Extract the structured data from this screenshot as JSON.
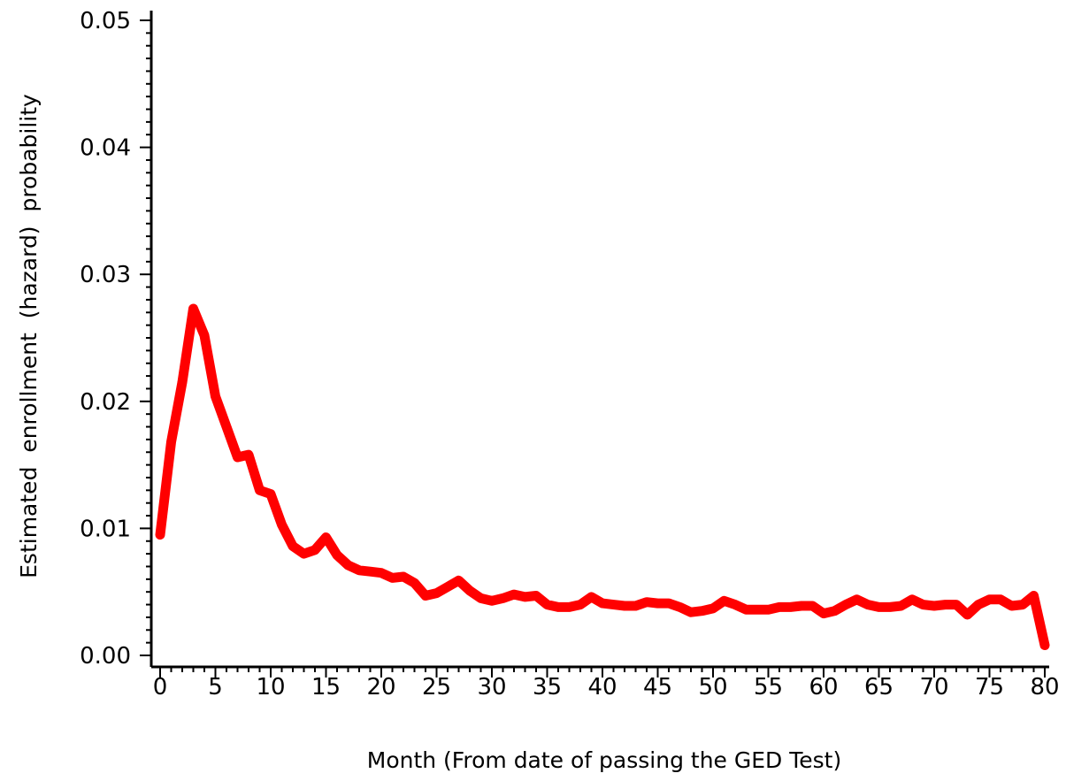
{
  "chart_data": {
    "type": "line",
    "title": "",
    "xlabel": "Month (From date of passing the GED Test)",
    "ylabel": "Estimated  enrollment  (hazard)  probability",
    "xlim": [
      0,
      80
    ],
    "ylim": [
      0,
      0.05
    ],
    "xticks": [
      0,
      5,
      10,
      15,
      20,
      25,
      30,
      35,
      40,
      45,
      50,
      55,
      60,
      65,
      70,
      75,
      80
    ],
    "xtick_labels": [
      "0",
      "5",
      "10",
      "15",
      "20",
      "25",
      "30",
      "35",
      "40",
      "45",
      "50",
      "55",
      "60",
      "65",
      "70",
      "75",
      "80"
    ],
    "yticks": [
      0,
      0.01,
      0.02,
      0.03,
      0.04,
      0.05
    ],
    "ytick_labels": [
      "0.00",
      "0.01",
      "0.02",
      "0.03",
      "0.04",
      "0.05"
    ],
    "grid": false,
    "legend": "none",
    "series": [
      {
        "color": "#ff0000",
        "x": [
          0,
          1,
          2,
          3,
          4,
          5,
          6,
          7,
          8,
          9,
          10,
          11,
          12,
          13,
          14,
          15,
          16,
          17,
          18,
          19,
          20,
          21,
          22,
          23,
          24,
          25,
          26,
          27,
          28,
          29,
          30,
          31,
          32,
          33,
          34,
          35,
          36,
          37,
          38,
          39,
          40,
          41,
          42,
          43,
          44,
          45,
          46,
          47,
          48,
          49,
          50,
          51,
          52,
          53,
          54,
          55,
          56,
          57,
          58,
          59,
          60,
          61,
          62,
          63,
          64,
          65,
          66,
          67,
          68,
          69,
          70,
          71,
          72,
          73,
          74,
          75,
          76,
          77,
          78,
          79,
          80
        ],
        "y": [
          0.0095,
          0.0168,
          0.0215,
          0.0273,
          0.0252,
          0.0204,
          0.018,
          0.0156,
          0.0158,
          0.013,
          0.0127,
          0.0103,
          0.0086,
          0.008,
          0.0083,
          0.0093,
          0.0079,
          0.0071,
          0.0067,
          0.0066,
          0.0065,
          0.0061,
          0.0062,
          0.0057,
          0.0047,
          0.0049,
          0.0054,
          0.0059,
          0.0051,
          0.0045,
          0.0043,
          0.0045,
          0.0048,
          0.0046,
          0.0047,
          0.004,
          0.0038,
          0.0038,
          0.004,
          0.0046,
          0.0041,
          0.004,
          0.0039,
          0.0039,
          0.0042,
          0.0041,
          0.0041,
          0.0038,
          0.0034,
          0.0035,
          0.0037,
          0.0043,
          0.004,
          0.0036,
          0.0036,
          0.0036,
          0.0038,
          0.0038,
          0.0039,
          0.0039,
          0.0033,
          0.0035,
          0.004,
          0.0044,
          0.004,
          0.0038,
          0.0038,
          0.0039,
          0.0044,
          0.004,
          0.0039,
          0.004,
          0.004,
          0.0032,
          0.004,
          0.0044,
          0.0044,
          0.0039,
          0.004,
          0.0047,
          0.0008
        ]
      }
    ]
  },
  "style": {
    "axis_color": "#000000",
    "background": "#ffffff"
  }
}
